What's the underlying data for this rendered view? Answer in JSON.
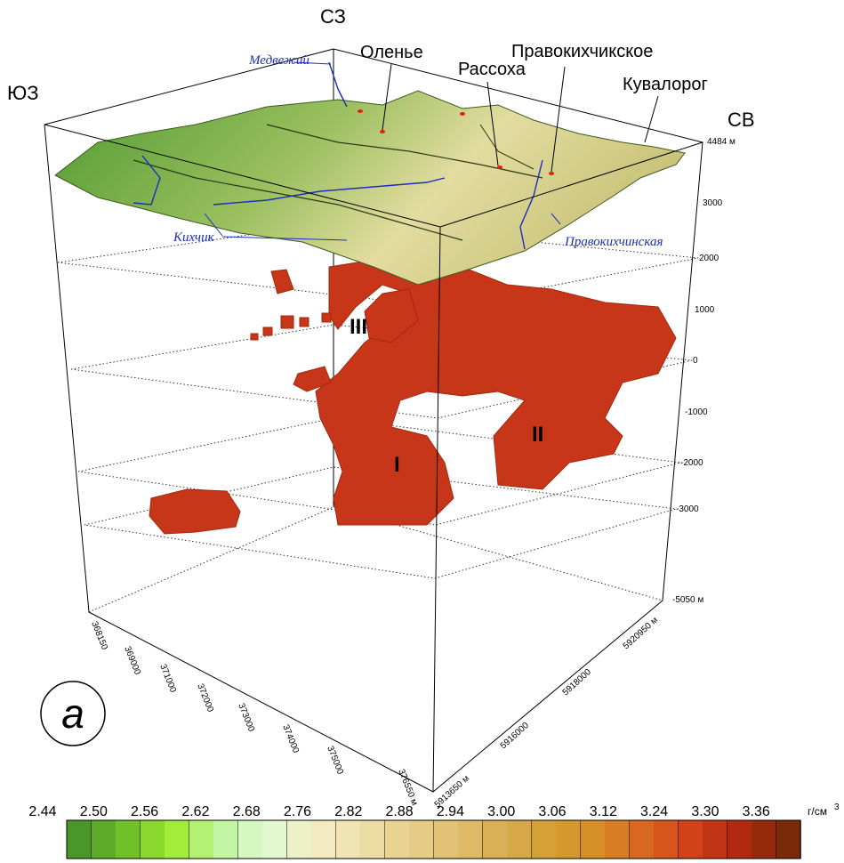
{
  "figure_label": "а",
  "directions": {
    "sw": "ЮЗ",
    "nw": "СЗ",
    "ne": "СВ"
  },
  "peaks": [
    "Оленье",
    "Рассоха",
    "Правокихчикское",
    "Кувалорог"
  ],
  "rivers": [
    "Медвежий",
    "Кихчик",
    "Правокихчинская"
  ],
  "bodies": [
    "I",
    "II",
    "III"
  ],
  "z_axis": [
    "4484 м",
    "3000",
    "2000",
    "1000",
    "0",
    "-1000",
    "-2000",
    "-3000",
    "-5050 м"
  ],
  "x_axis": [
    "368150",
    "369000",
    "371000",
    "372000",
    "373000",
    "374000",
    "375000",
    "376550 м"
  ],
  "y_axis": [
    "5913650 м",
    "5916000",
    "5918000",
    "5920950 м"
  ],
  "colorbar": {
    "ticks": [
      "2.44",
      "2.50",
      "2.56",
      "2.62",
      "2.68",
      "2.76",
      "2.82",
      "2.88",
      "2.94",
      "3.00",
      "3.06",
      "3.12",
      "3.24",
      "3.30",
      "3.36"
    ],
    "unit": "г/см",
    "unit_power": "3"
  }
}
